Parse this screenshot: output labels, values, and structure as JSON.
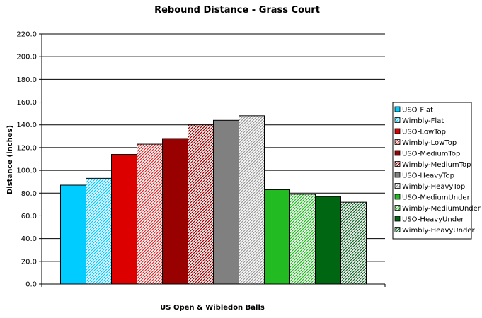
{
  "chart_data": {
    "type": "bar",
    "title": "Rebound Distance - Grass Court",
    "xlabel": "US Open & Wibledon Balls",
    "ylabel": "Distance (inches)",
    "ylim": [
      0,
      220
    ],
    "ytick_labels": [
      "0.0",
      "20.0",
      "40.0",
      "60.0",
      "80.0",
      "100.0",
      "120.0",
      "140.0",
      "160.0",
      "180.0",
      "200.0",
      "220.0"
    ],
    "grid": true,
    "legend_position": "right",
    "series": [
      {
        "name": "USO-Flat",
        "value": 87,
        "color": "#00ccff",
        "pattern": "solid"
      },
      {
        "name": "Wimbly-Flat",
        "value": 93,
        "color": "#00ccff",
        "pattern": "hatched"
      },
      {
        "name": "USO-LowTop",
        "value": 114,
        "color": "#dd0000",
        "pattern": "solid"
      },
      {
        "name": "Wimbly-LowTop",
        "value": 123,
        "color": "#cc3333",
        "pattern": "hatched"
      },
      {
        "name": "USO-MediumTop",
        "value": 128,
        "color": "#990000",
        "pattern": "solid"
      },
      {
        "name": "Wimbly-MediumTop",
        "value": 140,
        "color": "#990000",
        "pattern": "hatched"
      },
      {
        "name": "USO-HeavyTop",
        "value": 144,
        "color": "#808080",
        "pattern": "solid"
      },
      {
        "name": "Wimbly-HeavyTop",
        "value": 148,
        "color": "#999999",
        "pattern": "hatched"
      },
      {
        "name": "USO-MediumUnder",
        "value": 83,
        "color": "#22bb22",
        "pattern": "solid"
      },
      {
        "name": "Wimbly-MediumUnder",
        "value": 79,
        "color": "#22bb22",
        "pattern": "hatched"
      },
      {
        "name": "USO-HeavyUnder",
        "value": 77,
        "color": "#006611",
        "pattern": "solid"
      },
      {
        "name": "Wimbly-HeavyUnder",
        "value": 72,
        "color": "#116622",
        "pattern": "hatched"
      }
    ]
  }
}
